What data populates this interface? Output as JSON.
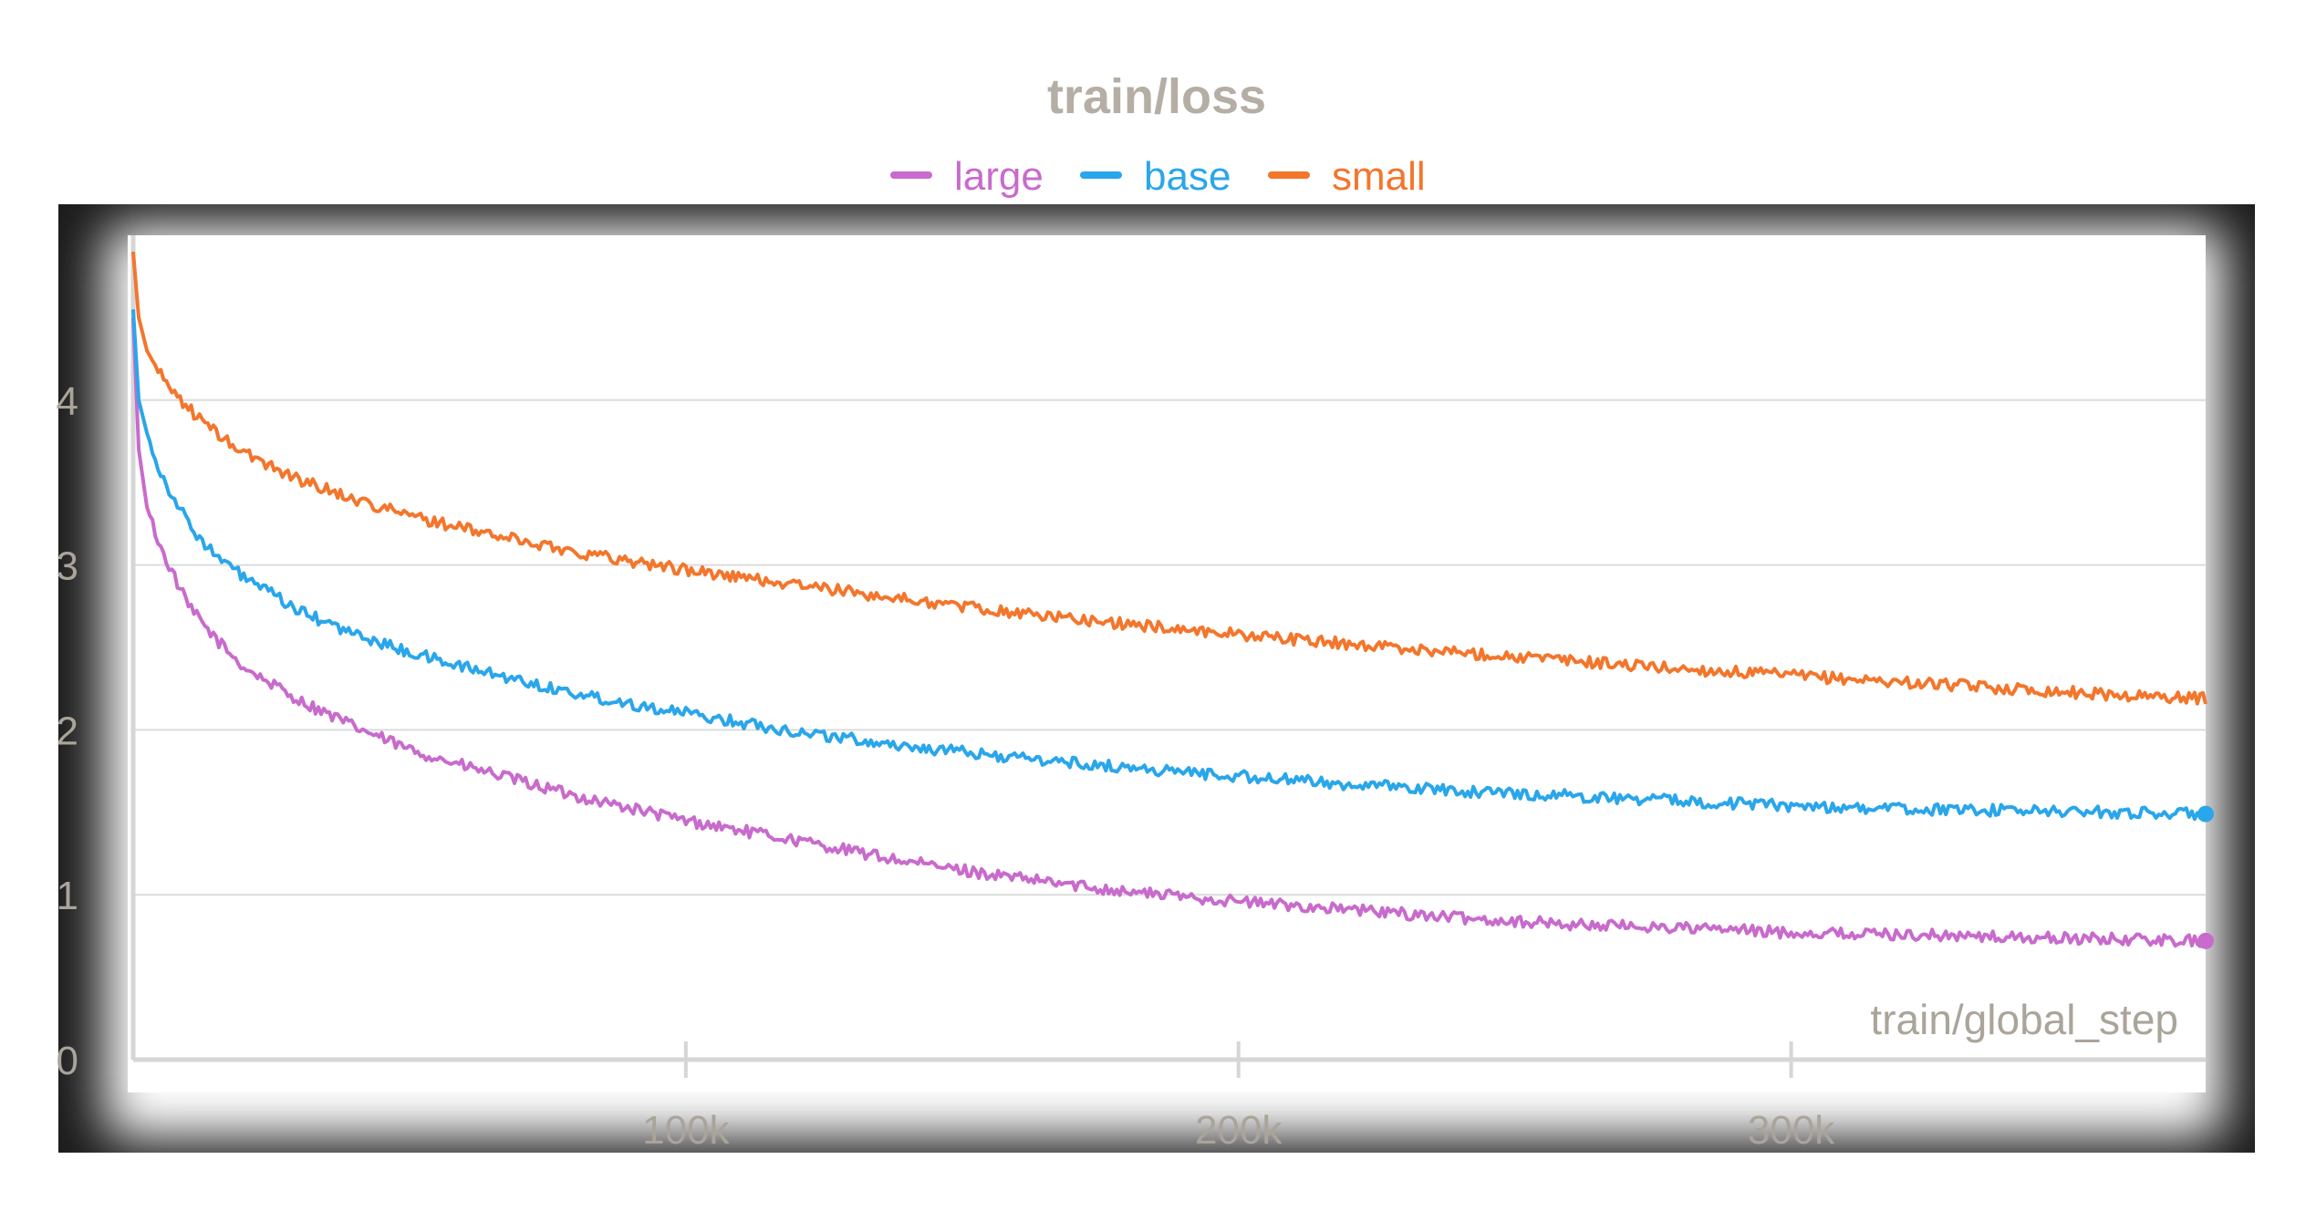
{
  "chart_data": {
    "type": "line",
    "title": "train/loss",
    "xlabel": "train/global_step",
    "ylabel": "",
    "xlim": [
      0,
      375000
    ],
    "ylim": [
      0,
      5
    ],
    "x_ticks": [
      100000,
      200000,
      300000
    ],
    "x_tick_labels": [
      "100k",
      "200k",
      "300k"
    ],
    "y_ticks": [
      0,
      1,
      2,
      3,
      4
    ],
    "y_tick_labels": [
      "0",
      "1",
      "2",
      "3",
      "4"
    ],
    "grid": "horizontal",
    "legend_position": "top-center",
    "frame_color": "#1b1b1b",
    "series": [
      {
        "name": "large",
        "color": "#c86bcc",
        "end_marker": true,
        "x": [
          0,
          1000,
          2500,
          5000,
          10000,
          15000,
          20000,
          30000,
          40000,
          50000,
          60000,
          80000,
          100000,
          120000,
          140000,
          160000,
          180000,
          200000,
          220000,
          240000,
          260000,
          280000,
          300000,
          320000,
          340000,
          360000,
          375000
        ],
        "y": [
          4.5,
          3.7,
          3.35,
          3.1,
          2.75,
          2.55,
          2.38,
          2.18,
          2.02,
          1.88,
          1.78,
          1.6,
          1.45,
          1.33,
          1.2,
          1.1,
          1.02,
          0.96,
          0.91,
          0.86,
          0.82,
          0.8,
          0.77,
          0.76,
          0.74,
          0.73,
          0.72
        ]
      },
      {
        "name": "base",
        "color": "#2aa6ea",
        "end_marker": true,
        "x": [
          0,
          1000,
          2500,
          5000,
          10000,
          15000,
          20000,
          30000,
          40000,
          50000,
          60000,
          80000,
          100000,
          120000,
          140000,
          160000,
          180000,
          200000,
          220000,
          240000,
          260000,
          280000,
          300000,
          320000,
          340000,
          360000,
          375000
        ],
        "y": [
          4.55,
          4.0,
          3.8,
          3.55,
          3.25,
          3.05,
          2.93,
          2.72,
          2.58,
          2.47,
          2.38,
          2.22,
          2.1,
          1.99,
          1.9,
          1.83,
          1.77,
          1.72,
          1.67,
          1.63,
          1.6,
          1.57,
          1.54,
          1.52,
          1.51,
          1.5,
          1.49
        ]
      },
      {
        "name": "small",
        "color": "#f3762c",
        "end_marker": false,
        "x": [
          0,
          1000,
          2500,
          5000,
          10000,
          15000,
          20000,
          30000,
          40000,
          50000,
          60000,
          80000,
          100000,
          120000,
          140000,
          160000,
          180000,
          200000,
          220000,
          240000,
          260000,
          280000,
          300000,
          320000,
          340000,
          360000,
          375000
        ],
        "y": [
          4.9,
          4.5,
          4.3,
          4.15,
          3.95,
          3.8,
          3.68,
          3.52,
          3.4,
          3.3,
          3.22,
          3.08,
          2.97,
          2.88,
          2.79,
          2.71,
          2.64,
          2.58,
          2.52,
          2.47,
          2.42,
          2.37,
          2.33,
          2.29,
          2.25,
          2.21,
          2.19
        ]
      }
    ]
  }
}
